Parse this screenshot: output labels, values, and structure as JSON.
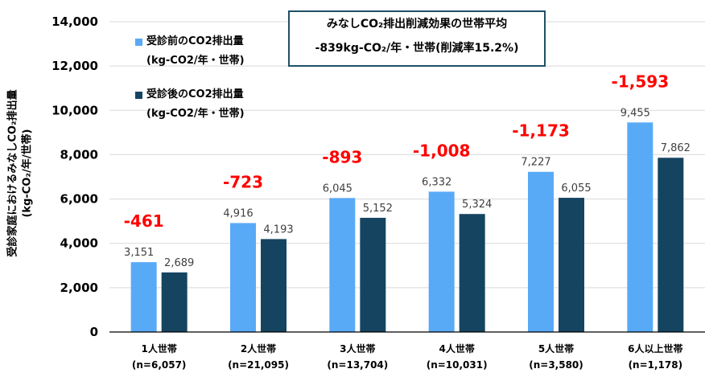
{
  "chart_data": {
    "type": "bar",
    "ylabel_line1": "受診家庭におけるみなしCO₂排出量",
    "ylabel_line2": "(kg-CO₂/年/世帯)",
    "ylim": [
      0,
      14000
    ],
    "yticks": [
      "0",
      "2,000",
      "4,000",
      "6,000",
      "8,000",
      "10,000",
      "12,000",
      "14,000"
    ],
    "categories": [
      {
        "label": "1人世帯",
        "n": "(n=6,057)"
      },
      {
        "label": "2人世帯",
        "n": "(n=21,095)"
      },
      {
        "label": "3人世帯",
        "n": "(n=13,704)"
      },
      {
        "label": "4人世帯",
        "n": "(n=10,031)"
      },
      {
        "label": "5人世帯",
        "n": "(n=3,580)"
      },
      {
        "label": "6人以上世帯",
        "n": "(n=1,178)"
      }
    ],
    "series": [
      {
        "name": "受診前のCO2排出量",
        "unit": "(kg-CO2/年・世帯)",
        "color": "#59aaf6",
        "values": [
          3151,
          4916,
          6045,
          6332,
          7227,
          9455
        ],
        "labels": [
          "3,151",
          "4,916",
          "6,045",
          "6,332",
          "7,227",
          "9,455"
        ]
      },
      {
        "name": "受診後のCO2排出量",
        "unit": "(kg-CO2/年・世帯)",
        "color": "#154461",
        "values": [
          2689,
          4193,
          5152,
          5324,
          6055,
          7862
        ],
        "labels": [
          "2,689",
          "4,193",
          "5,152",
          "5,324",
          "6,055",
          "7,862"
        ]
      }
    ],
    "reductions": [
      "-461",
      "-723",
      "-893",
      "-1,008",
      "-1,173",
      "-1,593"
    ],
    "reduction_color": "#ff0000",
    "grid": true,
    "legend_position": "top-left",
    "annotation": {
      "line1": "みなしCO₂排出削減効果の世帯平均",
      "line2": "-839kg-CO₂/年・世帯(削減率15.2%)"
    }
  }
}
